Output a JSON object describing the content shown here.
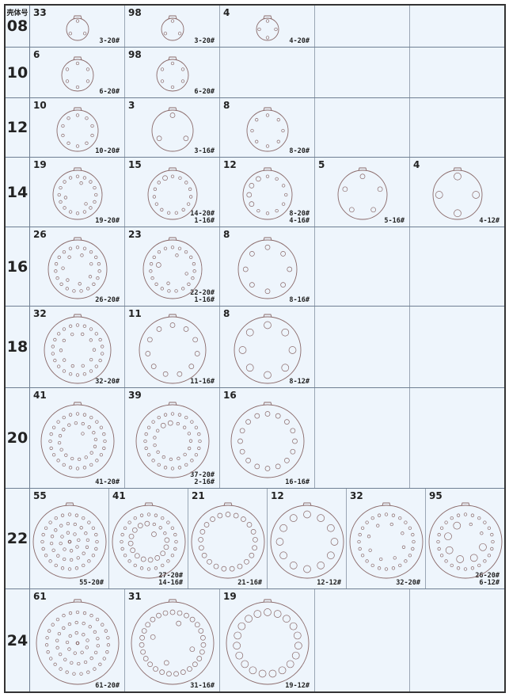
{
  "header_label": "壳体号",
  "colors": {
    "background": "#eef5fc",
    "line": "#6f7f93",
    "drawing": "#8a6a6a"
  },
  "rows": [
    {
      "shell": "08",
      "cells": [
        {
          "code": "33",
          "spec": [
            "3-20#"
          ]
        },
        {
          "code": "98",
          "spec": [
            "3-20#"
          ]
        },
        {
          "code": "4",
          "spec": [
            "4-20#"
          ]
        },
        {},
        {}
      ]
    },
    {
      "shell": "10",
      "cells": [
        {
          "code": "6",
          "spec": [
            "6-20#"
          ]
        },
        {
          "code": "98",
          "spec": [
            "6-20#"
          ]
        },
        {},
        {},
        {}
      ]
    },
    {
      "shell": "12",
      "cells": [
        {
          "code": "10",
          "spec": [
            "10-20#"
          ]
        },
        {
          "code": "3",
          "spec": [
            "3-16#"
          ]
        },
        {
          "code": "8",
          "spec": [
            "8-20#"
          ]
        },
        {},
        {}
      ]
    },
    {
      "shell": "14",
      "cells": [
        {
          "code": "19",
          "spec": [
            "19-20#"
          ]
        },
        {
          "code": "15",
          "spec": [
            "14-20#",
            "1-16#"
          ]
        },
        {
          "code": "12",
          "spec": [
            "8-20#",
            "4-16#"
          ]
        },
        {
          "code": "5",
          "spec": [
            "5-16#"
          ]
        },
        {
          "code": "4",
          "spec": [
            "4-12#"
          ]
        }
      ]
    },
    {
      "shell": "16",
      "cells": [
        {
          "code": "26",
          "spec": [
            "26-20#"
          ]
        },
        {
          "code": "23",
          "spec": [
            "22-20#",
            "1-16#"
          ]
        },
        {
          "code": "8",
          "spec": [
            "8-16#"
          ]
        },
        {},
        {}
      ]
    },
    {
      "shell": "18",
      "cells": [
        {
          "code": "32",
          "spec": [
            "32-20#"
          ]
        },
        {
          "code": "11",
          "spec": [
            "11-16#"
          ]
        },
        {
          "code": "8",
          "spec": [
            "8-12#"
          ]
        },
        {},
        {}
      ]
    },
    {
      "shell": "20",
      "cells": [
        {
          "code": "41",
          "spec": [
            "41-20#"
          ]
        },
        {
          "code": "39",
          "spec": [
            "37-20#",
            "2-16#"
          ]
        },
        {
          "code": "16",
          "spec": [
            "16-16#"
          ]
        },
        {},
        {}
      ]
    },
    {
      "shell": "22",
      "cells": [
        {
          "code": "55",
          "spec": [
            "55-20#"
          ]
        },
        {
          "code": "41",
          "spec": [
            "27-20#",
            "14-16#"
          ]
        },
        {
          "code": "21",
          "spec": [
            "21-16#"
          ]
        },
        {
          "code": "12",
          "spec": [
            "12-12#"
          ]
        },
        {
          "code": "32",
          "spec": [
            "32-20#"
          ]
        },
        {
          "code": "95",
          "spec": [
            "26-20#",
            "6-12#"
          ]
        }
      ]
    },
    {
      "shell": "24",
      "cells": [
        {
          "code": "61",
          "spec": [
            "61-20#"
          ]
        },
        {
          "code": "31",
          "spec": [
            "31-16#"
          ]
        },
        {
          "code": "19",
          "spec": [
            "19-12#"
          ]
        },
        {},
        {}
      ]
    }
  ]
}
